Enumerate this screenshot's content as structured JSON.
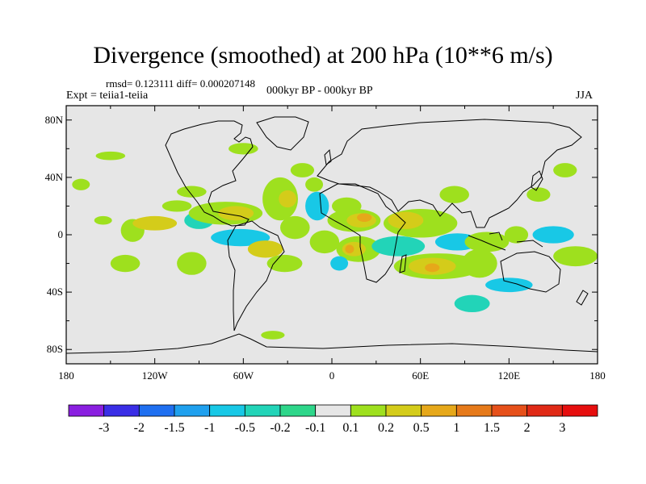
{
  "title": "Divergence (smoothed) at 200 hPa (10**6 m/s)",
  "stats": "rmsd= 0.123111 diff= 0.000207148",
  "experiment": "Expt = teiia1-teiia",
  "period": "000kyr BP - 000kyr BP",
  "season": "JJA",
  "y_axis_labels": [
    "80N",
    "40N",
    "0",
    "40S",
    "80S"
  ],
  "x_axis_labels": [
    "180",
    "120W",
    "60W",
    "0",
    "60E",
    "120E",
    "180"
  ],
  "colorbar": {
    "labels": [
      "-3",
      "-2",
      "-1.5",
      "-1",
      "-0.5",
      "-0.2",
      "-0.1",
      "0.1",
      "0.2",
      "0.5",
      "1",
      "1.5",
      "2",
      "3"
    ],
    "colors": [
      "#8a1fe0",
      "#3a2ee6",
      "#1f6ff0",
      "#1fa0ee",
      "#18c8e6",
      "#22d4b8",
      "#2ed68a",
      "#e6e6e6",
      "#9ee01e",
      "#d4cc1a",
      "#e6a81a",
      "#e67a1a",
      "#e6501a",
      "#e02a16",
      "#e60e0e"
    ]
  },
  "map_colors": {
    "background": "#e6e6e6",
    "coast": "#000000"
  },
  "blobs": [
    {
      "lon": 168,
      "lat": 35,
      "rx": 6,
      "ry": 5,
      "cat": 8
    },
    {
      "lon": 190,
      "lat": 20,
      "rx": 10,
      "ry": 6,
      "cat": 8
    },
    {
      "lon": 195,
      "lat": 10,
      "rx": 18,
      "ry": 8,
      "cat": 8
    },
    {
      "lon": 200,
      "lat": 10,
      "rx": 10,
      "ry": 5,
      "cat": 9
    },
    {
      "lon": 202,
      "lat": 12,
      "rx": 5,
      "ry": 3,
      "cat": 10
    },
    {
      "lon": 198,
      "lat": -10,
      "rx": 15,
      "ry": 9,
      "cat": 8
    },
    {
      "lon": 195,
      "lat": -10,
      "rx": 8,
      "ry": 5,
      "cat": 9
    },
    {
      "lon": 192,
      "lat": -10,
      "rx": 3,
      "ry": 3,
      "cat": 10
    },
    {
      "lon": 185,
      "lat": -20,
      "rx": 6,
      "ry": 5,
      "cat": 4
    },
    {
      "lon": 240,
      "lat": 8,
      "rx": 25,
      "ry": 10,
      "cat": 8
    },
    {
      "lon": 230,
      "lat": 10,
      "rx": 12,
      "ry": 6,
      "cat": 9
    },
    {
      "lon": 225,
      "lat": -8,
      "rx": 18,
      "ry": 7,
      "cat": 5
    },
    {
      "lon": 252,
      "lat": -22,
      "rx": 30,
      "ry": 9,
      "cat": 8
    },
    {
      "lon": 248,
      "lat": -22,
      "rx": 16,
      "ry": 6,
      "cat": 9
    },
    {
      "lon": 248,
      "lat": -23,
      "rx": 5,
      "ry": 3,
      "cat": 10
    },
    {
      "lon": 263,
      "lat": 28,
      "rx": 10,
      "ry": 6,
      "cat": 8
    },
    {
      "lon": 265,
      "lat": -5,
      "rx": 15,
      "ry": 6,
      "cat": 4
    },
    {
      "lon": 285,
      "lat": -5,
      "rx": 15,
      "ry": 7,
      "cat": 8
    },
    {
      "lon": 305,
      "lat": 0,
      "rx": 8,
      "ry": 6,
      "cat": 8
    },
    {
      "lon": 275,
      "lat": -48,
      "rx": 12,
      "ry": 6,
      "cat": 5
    },
    {
      "lon": 280,
      "lat": -20,
      "rx": 12,
      "ry": 10,
      "cat": 8
    },
    {
      "lon": 300,
      "lat": -35,
      "rx": 16,
      "ry": 5,
      "cat": 4
    },
    {
      "lon": 330,
      "lat": 0,
      "rx": 14,
      "ry": 6,
      "cat": 4
    },
    {
      "lon": 345,
      "lat": -15,
      "rx": 15,
      "ry": 7,
      "cat": 8
    },
    {
      "lon": 320,
      "lat": 28,
      "rx": 8,
      "ry": 5,
      "cat": 8
    },
    {
      "lon": 338,
      "lat": 45,
      "rx": 8,
      "ry": 5,
      "cat": 8
    },
    {
      "lon": 10,
      "lat": 35,
      "rx": 6,
      "ry": 4,
      "cat": 8
    },
    {
      "lon": 25,
      "lat": 10,
      "rx": 6,
      "ry": 3,
      "cat": 8
    },
    {
      "lon": 40,
      "lat": -20,
      "rx": 10,
      "ry": 6,
      "cat": 8
    },
    {
      "lon": 45,
      "lat": 3,
      "rx": 8,
      "ry": 8,
      "cat": 8
    },
    {
      "lon": 30,
      "lat": 55,
      "rx": 10,
      "ry": 3,
      "cat": 8
    },
    {
      "lon": 60,
      "lat": 8,
      "rx": 15,
      "ry": 5,
      "cat": 9
    },
    {
      "lon": 75,
      "lat": 20,
      "rx": 10,
      "ry": 4,
      "cat": 8
    },
    {
      "lon": 85,
      "lat": 30,
      "rx": 10,
      "ry": 4,
      "cat": 8
    },
    {
      "lon": 90,
      "lat": 10,
      "rx": 10,
      "ry": 6,
      "cat": 5
    },
    {
      "lon": 108,
      "lat": 15,
      "rx": 25,
      "ry": 8,
      "cat": 8
    },
    {
      "lon": 115,
      "lat": 15,
      "rx": 12,
      "ry": 5,
      "cat": 9
    },
    {
      "lon": 145,
      "lat": 25,
      "rx": 12,
      "ry": 15,
      "cat": 8
    },
    {
      "lon": 150,
      "lat": 25,
      "rx": 6,
      "ry": 6,
      "cat": 9
    },
    {
      "lon": 170,
      "lat": 20,
      "rx": 8,
      "ry": 10,
      "cat": 4
    },
    {
      "lon": 155,
      "lat": 5,
      "rx": 10,
      "ry": 8,
      "cat": 8
    },
    {
      "lon": 118,
      "lat": -2,
      "rx": 20,
      "ry": 6,
      "cat": 4
    },
    {
      "lon": 135,
      "lat": -10,
      "rx": 12,
      "ry": 6,
      "cat": 9
    },
    {
      "lon": 148,
      "lat": -20,
      "rx": 12,
      "ry": 6,
      "cat": 8
    },
    {
      "lon": 175,
      "lat": -5,
      "rx": 10,
      "ry": 8,
      "cat": 8
    },
    {
      "lon": 85,
      "lat": -20,
      "rx": 10,
      "ry": 8,
      "cat": 8
    },
    {
      "lon": 160,
      "lat": 45,
      "rx": 8,
      "ry": 5,
      "cat": 8
    },
    {
      "lon": 140,
      "lat": -70,
      "rx": 8,
      "ry": 3,
      "cat": 8
    },
    {
      "lon": 120,
      "lat": 60,
      "rx": 10,
      "ry": 4,
      "cat": 8
    }
  ]
}
